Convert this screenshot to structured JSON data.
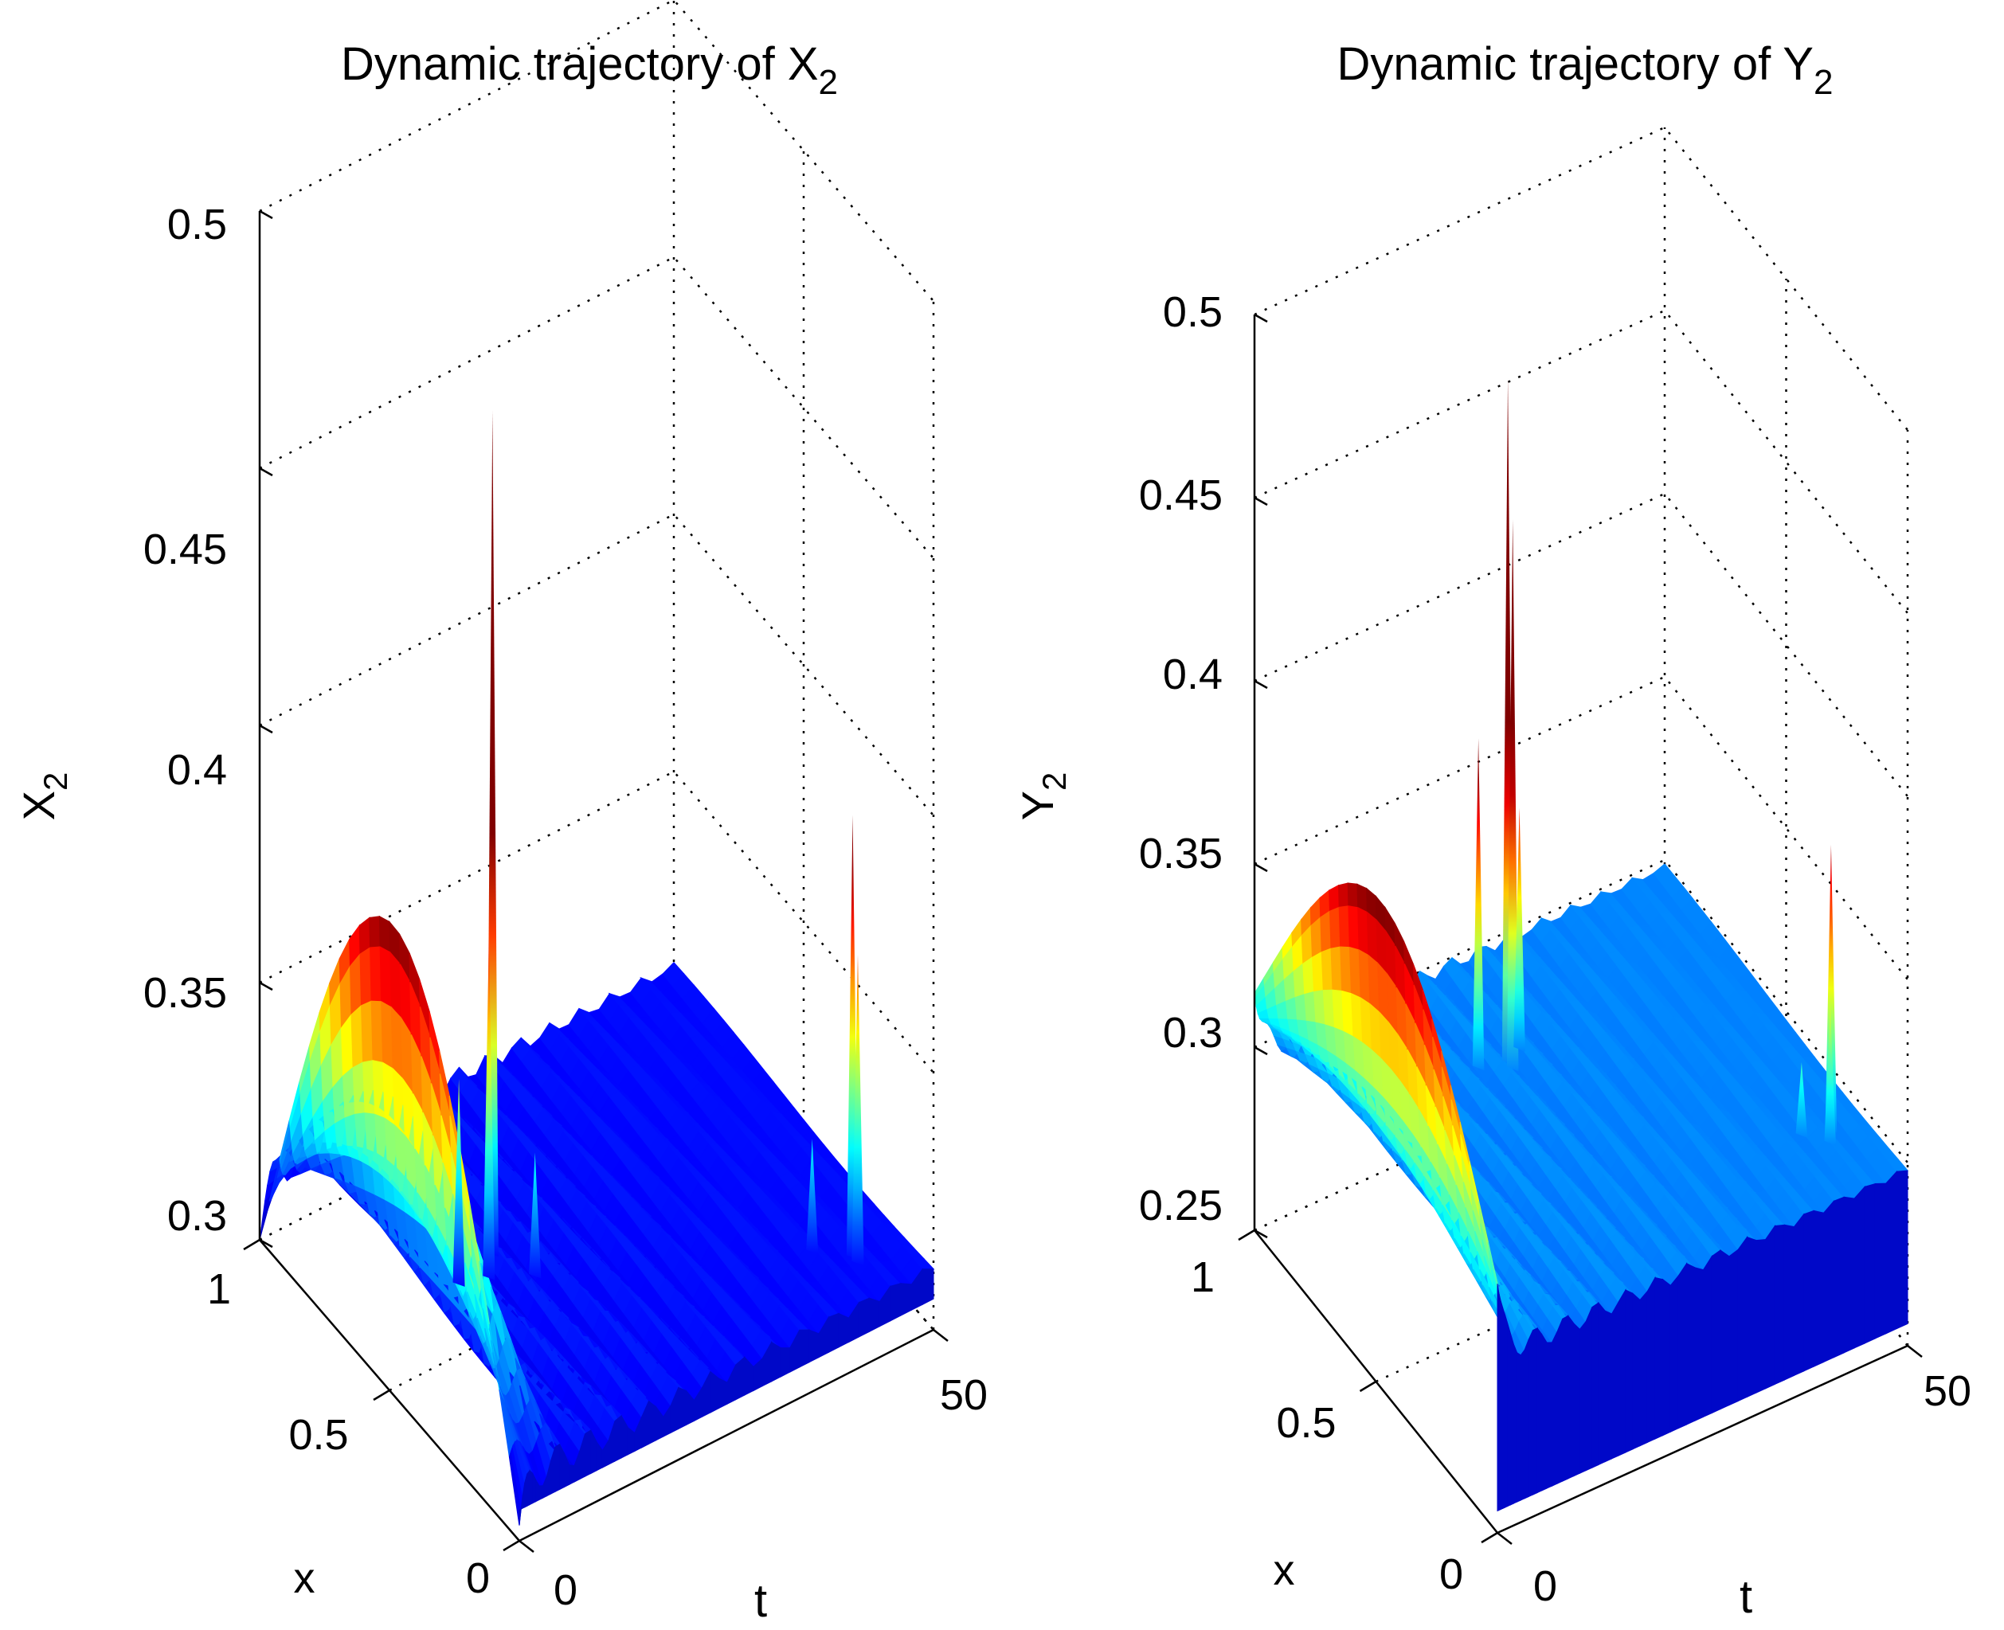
{
  "colormap": {
    "name": "jet",
    "stops": [
      "#00008f",
      "#0000ff",
      "#0080ff",
      "#00ffff",
      "#80ff80",
      "#ffff00",
      "#ff8000",
      "#ff0000",
      "#800000"
    ]
  },
  "chart_data": [
    {
      "type": "surface",
      "title": "Dynamic trajectory of X",
      "title_subscript": "2",
      "zlabel": "X",
      "zlabel_subscript": "2",
      "xlabel": "x",
      "tlabel": "t",
      "x_range": [
        0,
        1
      ],
      "t_range": [
        0,
        50
      ],
      "zlim": [
        0.3,
        0.5
      ],
      "z_ticks": [
        "0.3",
        "0.35",
        "0.4",
        "0.45",
        "0.5"
      ],
      "x_ticks": [
        "0",
        "0.5",
        "1"
      ],
      "t_ticks": [
        "0",
        "50"
      ],
      "colormap_domain": [
        0.3,
        0.39
      ],
      "baseline_value": 0.312,
      "initial_profile": {
        "peak": 0.388,
        "peak_x": 0.5,
        "ends": 0.303
      },
      "secondary_bump": {
        "peak": 0.345,
        "t": 3,
        "x": 0.5
      },
      "spikes": [
        {
          "t": 14,
          "x": 0.55,
          "value": 0.476
        },
        {
          "t": 12,
          "x": 0.5,
          "value": 0.378
        },
        {
          "t": 9,
          "x": 0.52,
          "value": 0.352
        },
        {
          "t": 16,
          "x": 0.45,
          "value": 0.336
        },
        {
          "t": 44,
          "x": 0.12,
          "value": 0.398
        },
        {
          "t": 44,
          "x": 0.1,
          "value": 0.372
        },
        {
          "t": 41,
          "x": 0.18,
          "value": 0.334
        }
      ]
    },
    {
      "type": "surface",
      "title": "Dynamic trajectory of Y",
      "title_subscript": "2",
      "zlabel": "Y",
      "zlabel_subscript": "2",
      "xlabel": "x",
      "tlabel": "t",
      "x_range": [
        0,
        1
      ],
      "t_range": [
        0,
        50
      ],
      "zlim": [
        0.25,
        0.5
      ],
      "z_ticks": [
        "0.25",
        "0.3",
        "0.35",
        "0.4",
        "0.45",
        "0.5"
      ],
      "x_ticks": [
        "0",
        "0.5",
        "1"
      ],
      "t_ticks": [
        "0",
        "50"
      ],
      "colormap_domain": [
        0.27,
        0.38
      ],
      "baseline_value": 0.298,
      "initial_profile": {
        "peak": 0.38,
        "peak_x": 0.5,
        "ends": 0.318
      },
      "secondary_bump": {
        "peak": 0.31,
        "t": 3,
        "x": 0.5
      },
      "spikes": [
        {
          "t": 22,
          "x": 0.7,
          "value": 0.485
        },
        {
          "t": 22,
          "x": 0.68,
          "value": 0.448
        },
        {
          "t": 19,
          "x": 0.72,
          "value": 0.388
        },
        {
          "t": 24,
          "x": 0.72,
          "value": 0.364
        },
        {
          "t": 46,
          "x": 0.18,
          "value": 0.376
        },
        {
          "t": 45,
          "x": 0.15,
          "value": 0.336
        },
        {
          "t": 43,
          "x": 0.2,
          "value": 0.318
        }
      ]
    }
  ]
}
